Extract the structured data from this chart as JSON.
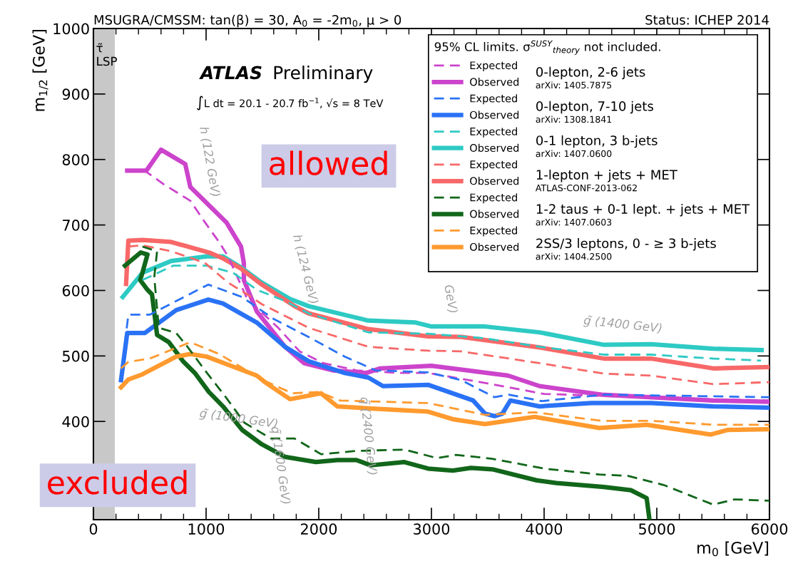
{
  "chart_data": {
    "type": "line",
    "title": "MSUGRA/CMSSM: tan(β) = 30, A$_{0}$ = -2m$_{0}$, μ > 0",
    "subtitle": "Status: ICHEP 2014",
    "xlabel": "m$_{0}$ [GeV]",
    "ylabel": "m$_{1/2}$ [GeV]",
    "legend_title": "95% CL limits. σ$^{SUSY}$$_{theory}$ not included.",
    "xlim": [
      0,
      6000
    ],
    "ylim": [
      250,
      1000
    ],
    "xticks": [
      0,
      1000,
      2000,
      3000,
      4000,
      5000,
      6000
    ],
    "yticks": [
      400,
      500,
      600,
      700,
      800,
      900,
      1000
    ],
    "legend": "top right",
    "grid": false,
    "series": [
      {
        "name": "Expected",
        "color": "#cc44cc",
        "line_style": "dashed",
        "x": [
          300,
          455,
          625,
          860,
          990,
          1115,
          1195,
          1365,
          1640,
          1830,
          2040,
          2335,
          2715,
          2970,
          3500,
          4000,
          5000,
          6000
        ],
        "values": [
          783,
          783,
          762,
          737,
          704,
          674,
          652,
          587,
          543,
          507,
          489,
          478,
          474,
          474,
          458,
          442,
          436,
          432
        ]
      },
      {
        "name": "Observed",
        "color": "#cc44cc",
        "line_style": "solid",
        "x": [
          300,
          470,
          600,
          815,
          860,
          1180,
          1310,
          1335,
          1335,
          1450,
          1700,
          1870,
          2125,
          2420,
          2545,
          3000,
          3680,
          3960,
          4510,
          5500,
          6000
        ],
        "values": [
          783,
          783,
          815,
          793,
          758,
          704,
          667,
          642,
          616,
          568,
          514,
          489,
          478,
          474,
          481,
          485,
          470,
          454,
          441,
          432,
          430
        ]
      },
      {
        "name": "Expected",
        "color": "#2a72f5",
        "line_style": "dashed",
        "x": [
          245,
          310,
          500,
          770,
          1020,
          1320,
          1595,
          1910,
          2230,
          2505,
          2970,
          3265,
          3560,
          3685,
          3980,
          4530,
          6000
        ],
        "values": [
          470,
          563,
          563,
          587,
          609,
          590,
          557,
          529,
          499,
          478,
          475,
          463,
          437,
          441,
          431,
          441,
          437
        ]
      },
      {
        "name": "Observed",
        "color": "#2a72f5",
        "line_style": "solid",
        "x": [
          245,
          300,
          455,
          735,
          1020,
          1150,
          1450,
          1700,
          1910,
          2230,
          2440,
          2570,
          2970,
          3370,
          3475,
          3560,
          3630,
          3700,
          3960,
          4420,
          4950,
          5500,
          6000
        ],
        "values": [
          463,
          535,
          535,
          570,
          586,
          580,
          551,
          514,
          492,
          474,
          467,
          454,
          456,
          432,
          412,
          408,
          412,
          432,
          423,
          428,
          428,
          423,
          421
        ]
      },
      {
        "name": "Expected",
        "color": "#2ecac4",
        "line_style": "dashed",
        "x": [
          435,
          710,
          1005,
          1240,
          1450,
          1700,
          1910,
          2440,
          2970,
          3475,
          3960,
          4530,
          4950,
          5500,
          5925
        ],
        "values": [
          616,
          638,
          638,
          627,
          601,
          584,
          565,
          536,
          534,
          527,
          514,
          502,
          502,
          496,
          493
        ]
      },
      {
        "name": "Observed",
        "color": "#2ecac4",
        "line_style": "solid",
        "x": [
          260,
          435,
          690,
          1005,
          1150,
          1320,
          1495,
          1745,
          1910,
          2440,
          2860,
          3000,
          3475,
          3960,
          4530,
          4950,
          5500,
          5930
        ],
        "values": [
          590,
          627,
          645,
          652,
          652,
          634,
          612,
          587,
          576,
          554,
          551,
          545,
          545,
          536,
          517,
          518,
          511,
          509
        ]
      },
      {
        "name": "Expected",
        "color": "#f86868",
        "line_style": "dashed",
        "x": [
          310,
          435,
          690,
          990,
          1195,
          1365,
          1495,
          1910,
          2440,
          2970,
          3265,
          3960,
          4530,
          4950,
          5500,
          6000
        ],
        "values": [
          667,
          669,
          660,
          642,
          612,
          594,
          579,
          543,
          514,
          508,
          507,
          489,
          473,
          470,
          457,
          460
        ]
      },
      {
        "name": "Observed",
        "color": "#f86868",
        "line_style": "solid",
        "x": [
          290,
          310,
          435,
          690,
          1025,
          1150,
          1305,
          1495,
          1785,
          1910,
          2440,
          2970,
          3265,
          3960,
          4530,
          4950,
          5500,
          6000
        ],
        "values": [
          610,
          676,
          677,
          674,
          658,
          649,
          634,
          609,
          576,
          565,
          541,
          530,
          529,
          513,
          496,
          496,
          481,
          483
        ]
      },
      {
        "name": "Expected",
        "color": "#11661a",
        "line_style": "dashed",
        "x": [
          435,
          565,
          540,
          580,
          735,
          835,
          990,
          1175,
          1340,
          1575,
          1785,
          2020,
          2335,
          2760,
          3050,
          3220,
          3540,
          4000,
          4490,
          4740,
          5060,
          5500,
          5690,
          6000
        ],
        "values": [
          667,
          660,
          620,
          543,
          535,
          514,
          478,
          437,
          398,
          374,
          374,
          350,
          355,
          357,
          344,
          349,
          343,
          328,
          319,
          317,
          303,
          273,
          281,
          279
        ]
      },
      {
        "name": "Observed",
        "color": "#11661a",
        "line_style": "solid",
        "x": [
          280,
          420,
          480,
          435,
          415,
          480,
          520,
          565,
          670,
          795,
          900,
          1025,
          1150,
          1320,
          1495,
          1700,
          1975,
          2165,
          2335,
          2460,
          2760,
          2970,
          3190,
          3350,
          3540,
          3935,
          4110,
          4530,
          4770,
          4910,
          4935
        ],
        "values": [
          638,
          658,
          655,
          627,
          616,
          601,
          594,
          532,
          521,
          492,
          474,
          445,
          423,
          387,
          365,
          346,
          338,
          341,
          341,
          333,
          338,
          328,
          325,
          329,
          327,
          310,
          306,
          300,
          295,
          283,
          250
        ]
      },
      {
        "name": "Expected",
        "color": "#ff9a2e",
        "line_style": "dashed",
        "x": [
          245,
          310,
          500,
          860,
          1115,
          1495,
          1765,
          2000,
          2190,
          2970,
          3475,
          3915,
          4505,
          4950,
          5500,
          6000
        ],
        "values": [
          481,
          491,
          496,
          521,
          503,
          464,
          443,
          445,
          432,
          428,
          410,
          414,
          401,
          401,
          395,
          395
        ]
      },
      {
        "name": "Observed",
        "color": "#ff9a2e",
        "line_style": "solid",
        "x": [
          245,
          310,
          435,
          735,
          860,
          1005,
          1450,
          1530,
          1745,
          2020,
          2165,
          2440,
          2970,
          3200,
          3475,
          3915,
          4490,
          4910,
          5480,
          5625,
          6000
        ],
        "values": [
          452,
          464,
          472,
          499,
          503,
          499,
          470,
          459,
          434,
          443,
          423,
          420,
          415,
          403,
          396,
          407,
          390,
          395,
          380,
          387,
          388
        ]
      }
    ],
    "bands": [
      {
        "axis": "x",
        "from": 0,
        "to": 190,
        "label": "τ̃\nLSP",
        "color": "#c8c8c8"
      }
    ],
    "annotations": [
      "ATLAS",
      "Preliminary",
      "∫L dt = 20.1 - 20.7 fb$^{−1}$, √s = 8 TeV",
      "g̃ (1000 GeV)",
      "g̃ (1400 GeV)",
      "q̃ (1600 GeV)",
      "q̃ (2400 GeV)",
      "h (122 GeV)",
      "h (124 GeV)",
      "GeV)",
      "allowed",
      "excluded",
      "0-lepton, 2-6 jets",
      "arXiv: 1405.7875",
      "0-lepton, 7-10 jets",
      "arXiv: 1308.1841",
      "0-1 lepton, 3 b-jets",
      "arXiv: 1407.0600",
      "1-lepton + jets + MET",
      "ATLAS-CONF-2013-062",
      "1-2 taus + 0-1 lept. + jets + MET",
      "arXiv: 1407.0603",
      "2SS/3 leptons, 0 - ≥ 3 b-jets",
      "arXiv: 1404.2500"
    ]
  }
}
